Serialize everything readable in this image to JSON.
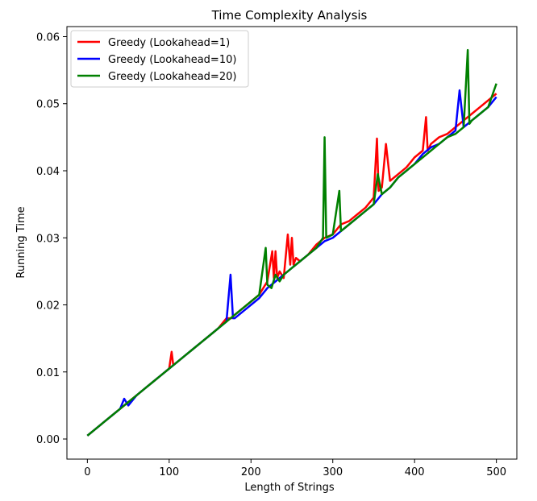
{
  "chart_data": {
    "type": "line",
    "title": "Time Complexity Analysis",
    "xlabel": "Length of Strings",
    "ylabel": "Running Time",
    "xlim": [
      -25,
      525
    ],
    "ylim": [
      -0.003,
      0.0615
    ],
    "xticks": [
      0,
      100,
      200,
      300,
      400,
      500
    ],
    "xtick_labels": [
      "0",
      "100",
      "200",
      "300",
      "400",
      "500"
    ],
    "yticks": [
      0.0,
      0.01,
      0.02,
      0.03,
      0.04,
      0.05,
      0.06
    ],
    "ytick_labels": [
      "0.00",
      "0.01",
      "0.02",
      "0.03",
      "0.04",
      "0.05",
      "0.06"
    ],
    "grid": false,
    "legend_position": "top-left",
    "series": [
      {
        "name": "Greedy (Lookahead=1)",
        "color": "#ff0000",
        "x": [
          0,
          10,
          20,
          30,
          40,
          50,
          60,
          70,
          80,
          90,
          100,
          103,
          105,
          110,
          120,
          130,
          140,
          150,
          160,
          170,
          176,
          180,
          190,
          200,
          210,
          220,
          226,
          228,
          230,
          232,
          235,
          240,
          245,
          248,
          250,
          252,
          255,
          260,
          270,
          280,
          290,
          300,
          310,
          320,
          330,
          340,
          350,
          354,
          356,
          360,
          365,
          370,
          380,
          390,
          400,
          410,
          414,
          416,
          420,
          430,
          440,
          450,
          460,
          470,
          480,
          490,
          500
        ],
        "values": [
          0.0005,
          0.0015,
          0.0025,
          0.0035,
          0.0045,
          0.0055,
          0.0065,
          0.0075,
          0.0085,
          0.0095,
          0.0105,
          0.013,
          0.011,
          0.0115,
          0.0125,
          0.0135,
          0.0145,
          0.0155,
          0.0165,
          0.018,
          0.018,
          0.0185,
          0.0195,
          0.0205,
          0.0215,
          0.0235,
          0.028,
          0.024,
          0.028,
          0.024,
          0.025,
          0.024,
          0.0305,
          0.026,
          0.03,
          0.026,
          0.027,
          0.0265,
          0.0275,
          0.029,
          0.03,
          0.0305,
          0.032,
          0.0325,
          0.0335,
          0.0345,
          0.036,
          0.0448,
          0.037,
          0.0375,
          0.044,
          0.0385,
          0.0395,
          0.0405,
          0.042,
          0.043,
          0.048,
          0.043,
          0.044,
          0.045,
          0.0455,
          0.0465,
          0.0475,
          0.0485,
          0.0495,
          0.0505,
          0.0515
        ]
      },
      {
        "name": "Greedy (Lookahead=10)",
        "color": "#0000ff",
        "x": [
          0,
          10,
          20,
          30,
          40,
          45,
          50,
          60,
          70,
          80,
          90,
          100,
          110,
          120,
          130,
          140,
          150,
          160,
          170,
          175,
          178,
          180,
          190,
          200,
          210,
          220,
          230,
          240,
          250,
          260,
          270,
          280,
          290,
          300,
          310,
          320,
          330,
          340,
          350,
          360,
          370,
          380,
          390,
          400,
          410,
          420,
          430,
          440,
          450,
          455,
          460,
          470,
          480,
          490,
          500
        ],
        "values": [
          0.0005,
          0.0015,
          0.0025,
          0.0035,
          0.0045,
          0.006,
          0.005,
          0.0065,
          0.0075,
          0.0085,
          0.0095,
          0.0105,
          0.0115,
          0.0125,
          0.0135,
          0.0145,
          0.0155,
          0.0165,
          0.0175,
          0.0245,
          0.018,
          0.018,
          0.019,
          0.02,
          0.021,
          0.0225,
          0.0235,
          0.0245,
          0.0255,
          0.0265,
          0.0275,
          0.0285,
          0.0295,
          0.03,
          0.031,
          0.032,
          0.033,
          0.034,
          0.035,
          0.0365,
          0.0375,
          0.039,
          0.04,
          0.041,
          0.0425,
          0.0435,
          0.044,
          0.045,
          0.046,
          0.052,
          0.0465,
          0.0475,
          0.0485,
          0.0495,
          0.051
        ]
      },
      {
        "name": "Greedy (Lookahead=20)",
        "color": "#008000",
        "x": [
          0,
          10,
          20,
          30,
          40,
          50,
          60,
          70,
          80,
          90,
          100,
          110,
          120,
          130,
          140,
          150,
          160,
          170,
          180,
          190,
          200,
          210,
          218,
          220,
          225,
          230,
          235,
          240,
          250,
          260,
          270,
          280,
          288,
          290,
          292,
          300,
          308,
          310,
          320,
          330,
          340,
          350,
          355,
          360,
          370,
          380,
          390,
          400,
          410,
          420,
          430,
          440,
          450,
          460,
          465,
          467,
          470,
          480,
          490,
          500
        ],
        "values": [
          0.0005,
          0.0015,
          0.0025,
          0.0035,
          0.0045,
          0.0055,
          0.0065,
          0.0075,
          0.0085,
          0.0095,
          0.0105,
          0.0115,
          0.0125,
          0.0135,
          0.0145,
          0.0155,
          0.0165,
          0.0175,
          0.0185,
          0.0195,
          0.0205,
          0.0215,
          0.0285,
          0.023,
          0.0225,
          0.0245,
          0.0235,
          0.0245,
          0.0255,
          0.0265,
          0.0275,
          0.0285,
          0.03,
          0.045,
          0.03,
          0.0305,
          0.037,
          0.031,
          0.032,
          0.033,
          0.034,
          0.035,
          0.0395,
          0.0365,
          0.0375,
          0.039,
          0.04,
          0.041,
          0.042,
          0.043,
          0.044,
          0.045,
          0.0455,
          0.0465,
          0.058,
          0.047,
          0.0475,
          0.0485,
          0.0495,
          0.053
        ]
      }
    ]
  }
}
